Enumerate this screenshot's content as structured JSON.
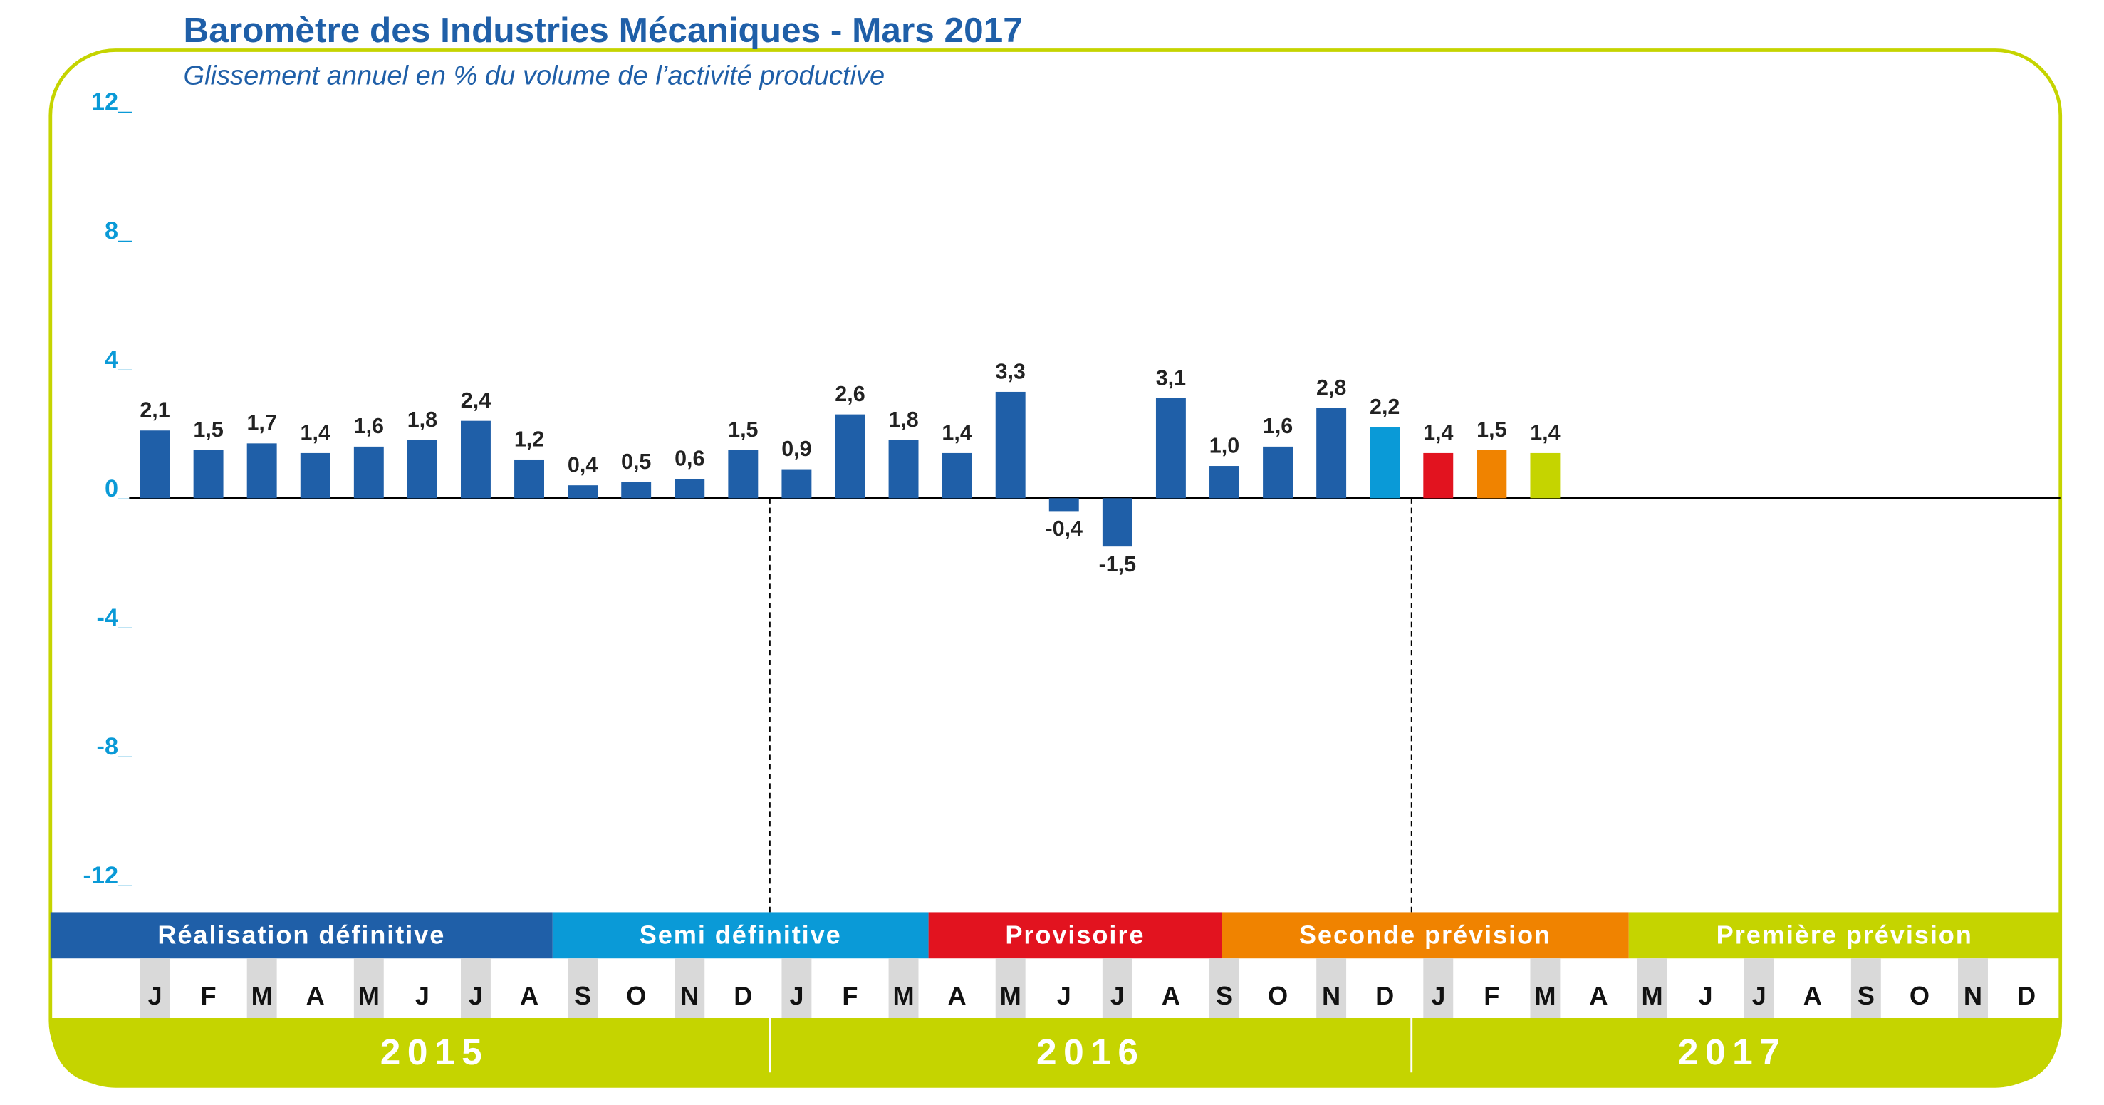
{
  "chart_data": {
    "type": "bar",
    "title": "Baromètre des Industries Mécaniques - Mars 2017",
    "subtitle": "Glissement annuel en % du volume de l’activité productive",
    "categories": [
      "J",
      "F",
      "M",
      "A",
      "M",
      "J",
      "J",
      "A",
      "S",
      "O",
      "N",
      "D",
      "J",
      "F",
      "M",
      "A",
      "M",
      "J",
      "J",
      "A",
      "S",
      "O",
      "N",
      "D",
      "J",
      "F",
      "M",
      "A",
      "M",
      "J",
      "J",
      "A",
      "S",
      "O",
      "N",
      "D"
    ],
    "values": [
      2.1,
      1.5,
      1.7,
      1.4,
      1.6,
      1.8,
      2.4,
      1.2,
      0.4,
      0.5,
      0.6,
      1.5,
      0.9,
      2.6,
      1.8,
      1.4,
      3.3,
      -0.4,
      -1.5,
      3.1,
      1.0,
      1.6,
      2.8,
      2.2,
      1.4,
      1.5,
      1.4,
      null,
      null,
      null,
      null,
      null,
      null,
      null,
      null,
      null
    ],
    "value_labels": [
      "2,1",
      "1,5",
      "1,7",
      "1,4",
      "1,6",
      "1,8",
      "2,4",
      "1,2",
      "0,4",
      "0,5",
      "0,6",
      "1,5",
      "0,9",
      "2,6",
      "1,8",
      "1,4",
      "3,3",
      "-0,4",
      "-1,5",
      "3,1",
      "1,0",
      "1,6",
      "2,8",
      "2,2",
      "1,4",
      "1,5",
      "1,4",
      null,
      null,
      null,
      null,
      null,
      null,
      null,
      null,
      null
    ],
    "colors": [
      "#1f5fa8",
      "#1f5fa8",
      "#1f5fa8",
      "#1f5fa8",
      "#1f5fa8",
      "#1f5fa8",
      "#1f5fa8",
      "#1f5fa8",
      "#1f5fa8",
      "#1f5fa8",
      "#1f5fa8",
      "#1f5fa8",
      "#1f5fa8",
      "#1f5fa8",
      "#1f5fa8",
      "#1f5fa8",
      "#1f5fa8",
      "#1f5fa8",
      "#1f5fa8",
      "#1f5fa8",
      "#1f5fa8",
      "#1f5fa8",
      "#1f5fa8",
      "#0a9ad7",
      "#e2131f",
      "#f08300",
      "#c5d400",
      null,
      null,
      null,
      null,
      null,
      null,
      null,
      null,
      null
    ],
    "ylim": [
      -12,
      12
    ],
    "yticks": [
      {
        "value": 12,
        "label": "12_"
      },
      {
        "value": 8,
        "label": "8_"
      },
      {
        "value": 4,
        "label": "4_"
      },
      {
        "value": 0,
        "label": "0_"
      },
      {
        "value": -4,
        "label": "-4_"
      },
      {
        "value": -8,
        "label": "-8_"
      },
      {
        "value": -12,
        "label": "-12_"
      }
    ],
    "phases": [
      {
        "label": "Réalisation définitive",
        "color": "#1f5fa8"
      },
      {
        "label": "Semi définitive",
        "color": "#0a9ad7"
      },
      {
        "label": "Provisoire",
        "color": "#e2131f"
      },
      {
        "label": "Seconde prévision",
        "color": "#f08300"
      },
      {
        "label": "Première prévision",
        "color": "#c5d400"
      }
    ],
    "years": [
      "2015",
      "2016",
      "2017"
    ]
  }
}
